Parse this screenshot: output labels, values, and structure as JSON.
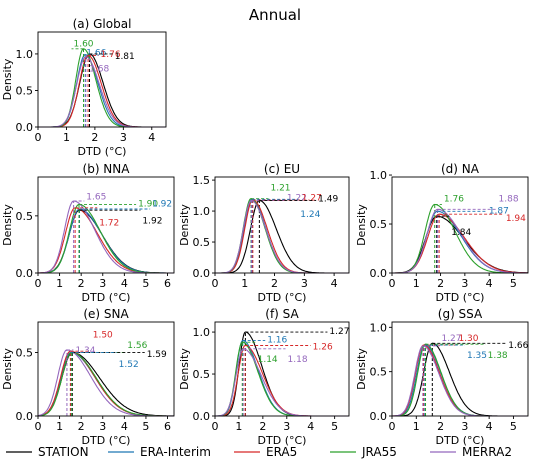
{
  "figure": {
    "title": "Annual",
    "legend": [
      {
        "name": "STATION",
        "color": "#000000"
      },
      {
        "name": "ERA-Interim",
        "color": "#1f77b4"
      },
      {
        "name": "ERA5",
        "color": "#d62728"
      },
      {
        "name": "JRA55",
        "color": "#2ca02c"
      },
      {
        "name": "MERRA2",
        "color": "#9467bd"
      }
    ]
  },
  "chart_data": [
    {
      "type": "line",
      "title": "(a) Global",
      "xlabel": "DTD (°C)",
      "ylabel": "Density",
      "xlim": [
        0,
        4.5
      ],
      "ylim": [
        0,
        1.3
      ],
      "xticks": [
        "0",
        "1",
        "2",
        "3",
        "4"
      ],
      "yticks": [
        "0.0",
        "0.5",
        "1.0"
      ],
      "series": [
        {
          "name": "STATION",
          "color": "#000000",
          "peak_x": 1.81,
          "peak_y": 1.0,
          "width": 0.34,
          "skew": 1.4
        },
        {
          "name": "ERA-Interim",
          "color": "#1f77b4",
          "peak_x": 1.66,
          "peak_y": 0.99,
          "width": 0.3,
          "skew": 1.5
        },
        {
          "name": "ERA5",
          "color": "#d62728",
          "peak_x": 1.76,
          "peak_y": 0.98,
          "width": 0.31,
          "skew": 1.5
        },
        {
          "name": "JRA55",
          "color": "#2ca02c",
          "peak_x": 1.6,
          "peak_y": 1.07,
          "width": 0.27,
          "skew": 1.6
        },
        {
          "name": "MERRA2",
          "color": "#9467bd",
          "peak_x": 1.68,
          "peak_y": 0.96,
          "width": 0.32,
          "skew": 1.5
        }
      ],
      "annotations": [
        {
          "text": "1.60",
          "color": "#2ca02c",
          "x": 1.6,
          "y": 1.14
        },
        {
          "text": "1.66",
          "color": "#1f77b4",
          "x": 2.05,
          "y": 1.02
        },
        {
          "text": "1.76",
          "color": "#d62728",
          "x": 2.55,
          "y": 1.0
        },
        {
          "text": "1.81",
          "color": "#000000",
          "x": 3.05,
          "y": 0.97
        },
        {
          "text": "1.68",
          "color": "#9467bd",
          "x": 2.15,
          "y": 0.8
        }
      ]
    },
    {
      "type": "line",
      "title": "(b) NNA",
      "xlabel": "DTD (°C)",
      "ylabel": "Density",
      "xlim": [
        0,
        6.3
      ],
      "ylim": [
        0,
        0.84
      ],
      "xticks": [
        "0",
        "1",
        "2",
        "3",
        "4",
        "5",
        "6"
      ],
      "yticks": [
        "0.0",
        "0.5"
      ],
      "series": [
        {
          "name": "STATION",
          "color": "#000000",
          "peak_x": 1.92,
          "peak_y": 0.55,
          "width": 0.48,
          "skew": 2.2
        },
        {
          "name": "ERA-Interim",
          "color": "#1f77b4",
          "peak_x": 1.92,
          "peak_y": 0.56,
          "width": 0.47,
          "skew": 2.2
        },
        {
          "name": "ERA5",
          "color": "#d62728",
          "peak_x": 1.72,
          "peak_y": 0.57,
          "width": 0.45,
          "skew": 2.3
        },
        {
          "name": "JRA55",
          "color": "#2ca02c",
          "peak_x": 1.9,
          "peak_y": 0.6,
          "width": 0.45,
          "skew": 2.2
        },
        {
          "name": "MERRA2",
          "color": "#9467bd",
          "peak_x": 1.65,
          "peak_y": 0.63,
          "width": 0.42,
          "skew": 2.3
        }
      ],
      "annotations": [
        {
          "text": "1.65",
          "color": "#9467bd",
          "x": 2.7,
          "y": 0.67
        },
        {
          "text": "1.90",
          "color": "#2ca02c",
          "x": 5.1,
          "y": 0.61
        },
        {
          "text": "1.92",
          "color": "#1f77b4",
          "x": 5.75,
          "y": 0.61
        },
        {
          "text": "1.72",
          "color": "#d62728",
          "x": 3.3,
          "y": 0.44
        },
        {
          "text": "1.92",
          "color": "#000000",
          "x": 5.3,
          "y": 0.46
        }
      ]
    },
    {
      "type": "line",
      "title": "(c) EU",
      "xlabel": "DTD (°C)",
      "ylabel": "Density",
      "xlim": [
        0,
        4.5
      ],
      "ylim": [
        0,
        1.55
      ],
      "xticks": [
        "0",
        "1",
        "2",
        "3",
        "4"
      ],
      "yticks": [
        "0.0",
        "0.5",
        "1.0",
        "1.5"
      ],
      "series": [
        {
          "name": "STATION",
          "color": "#000000",
          "peak_x": 1.49,
          "peak_y": 1.17,
          "width": 0.3,
          "skew": 1.9
        },
        {
          "name": "ERA-Interim",
          "color": "#1f77b4",
          "peak_x": 1.24,
          "peak_y": 1.19,
          "width": 0.26,
          "skew": 1.8
        },
        {
          "name": "ERA5",
          "color": "#d62728",
          "peak_x": 1.27,
          "peak_y": 1.18,
          "width": 0.27,
          "skew": 1.8
        },
        {
          "name": "JRA55",
          "color": "#2ca02c",
          "peak_x": 1.21,
          "peak_y": 1.2,
          "width": 0.26,
          "skew": 1.8
        },
        {
          "name": "MERRA2",
          "color": "#9467bd",
          "peak_x": 1.22,
          "peak_y": 1.17,
          "width": 0.27,
          "skew": 1.8
        }
      ],
      "annotations": [
        {
          "text": "1.21",
          "color": "#2ca02c",
          "x": 2.2,
          "y": 1.38
        },
        {
          "text": "1.22",
          "color": "#9467bd",
          "x": 2.75,
          "y": 1.22
        },
        {
          "text": "1.27",
          "color": "#d62728",
          "x": 3.25,
          "y": 1.22
        },
        {
          "text": "1.49",
          "color": "#000000",
          "x": 3.8,
          "y": 1.2
        },
        {
          "text": "1.24",
          "color": "#1f77b4",
          "x": 3.2,
          "y": 0.95
        }
      ]
    },
    {
      "type": "line",
      "title": "(d) NA",
      "xlabel": "DTD (°C)",
      "ylabel": "Density",
      "xlim": [
        0,
        5.6
      ],
      "ylim": [
        0,
        0.98
      ],
      "xticks": [
        "0",
        "1",
        "2",
        "3",
        "4",
        "5"
      ],
      "yticks": [
        "0.0",
        "0.5",
        "1.0"
      ],
      "series": [
        {
          "name": "STATION",
          "color": "#000000",
          "peak_x": 1.84,
          "peak_y": 0.58,
          "width": 0.46,
          "skew": 2.4
        },
        {
          "name": "ERA-Interim",
          "color": "#1f77b4",
          "peak_x": 1.87,
          "peak_y": 0.63,
          "width": 0.44,
          "skew": 2.2
        },
        {
          "name": "ERA5",
          "color": "#d62728",
          "peak_x": 1.94,
          "peak_y": 0.6,
          "width": 0.47,
          "skew": 2.2
        },
        {
          "name": "JRA55",
          "color": "#2ca02c",
          "peak_x": 1.76,
          "peak_y": 0.7,
          "width": 0.4,
          "skew": 2.1
        },
        {
          "name": "MERRA2",
          "color": "#9467bd",
          "peak_x": 1.88,
          "peak_y": 0.65,
          "width": 0.44,
          "skew": 2.2
        }
      ],
      "annotations": [
        {
          "text": "1.76",
          "color": "#2ca02c",
          "x": 2.55,
          "y": 0.76
        },
        {
          "text": "1.88",
          "color": "#9467bd",
          "x": 4.8,
          "y": 0.76
        },
        {
          "text": "1.87",
          "color": "#1f77b4",
          "x": 4.4,
          "y": 0.64
        },
        {
          "text": "1.94",
          "color": "#d62728",
          "x": 5.1,
          "y": 0.56
        },
        {
          "text": "1.84",
          "color": "#000000",
          "x": 2.85,
          "y": 0.42
        }
      ]
    },
    {
      "type": "line",
      "title": "(e) SNA",
      "xlabel": "DTD (°C)",
      "ylabel": "Density",
      "xlim": [
        0,
        6.3
      ],
      "ylim": [
        0,
        0.74
      ],
      "xticks": [
        "0",
        "1",
        "2",
        "3",
        "4",
        "5",
        "6"
      ],
      "yticks": [
        "0.0",
        "0.5"
      ],
      "series": [
        {
          "name": "STATION",
          "color": "#000000",
          "peak_x": 1.59,
          "peak_y": 0.5,
          "width": 0.48,
          "skew": 2.6
        },
        {
          "name": "ERA-Interim",
          "color": "#1f77b4",
          "peak_x": 1.52,
          "peak_y": 0.5,
          "width": 0.45,
          "skew": 2.5
        },
        {
          "name": "ERA5",
          "color": "#d62728",
          "peak_x": 1.5,
          "peak_y": 0.51,
          "width": 0.45,
          "skew": 2.5
        },
        {
          "name": "JRA55",
          "color": "#2ca02c",
          "peak_x": 1.56,
          "peak_y": 0.5,
          "width": 0.45,
          "skew": 2.5
        },
        {
          "name": "MERRA2",
          "color": "#9467bd",
          "peak_x": 1.34,
          "peak_y": 0.52,
          "width": 0.42,
          "skew": 2.6
        }
      ],
      "annotations": [
        {
          "text": "1.50",
          "color": "#d62728",
          "x": 3.0,
          "y": 0.64
        },
        {
          "text": "1.56",
          "color": "#2ca02c",
          "x": 4.6,
          "y": 0.56
        },
        {
          "text": "1.34",
          "color": "#9467bd",
          "x": 2.2,
          "y": 0.52
        },
        {
          "text": "1.59",
          "color": "#000000",
          "x": 5.5,
          "y": 0.49
        },
        {
          "text": "1.52",
          "color": "#1f77b4",
          "x": 4.2,
          "y": 0.41
        }
      ]
    },
    {
      "type": "line",
      "title": "(f) SA",
      "xlabel": "DTD (°C)",
      "ylabel": "Density",
      "xlim": [
        0,
        5.6
      ],
      "ylim": [
        0,
        1.12
      ],
      "xticks": [
        "0",
        "1",
        "2",
        "3",
        "4",
        "5"
      ],
      "yticks": [
        "0.0",
        "0.5",
        "1.0"
      ],
      "series": [
        {
          "name": "STATION",
          "color": "#000000",
          "peak_x": 1.27,
          "peak_y": 1.0,
          "width": 0.26,
          "skew": 2.6
        },
        {
          "name": "ERA-Interim",
          "color": "#1f77b4",
          "peak_x": 1.16,
          "peak_y": 0.9,
          "width": 0.27,
          "skew": 2.4
        },
        {
          "name": "ERA5",
          "color": "#d62728",
          "peak_x": 1.26,
          "peak_y": 0.84,
          "width": 0.29,
          "skew": 2.5
        },
        {
          "name": "JRA55",
          "color": "#2ca02c",
          "peak_x": 1.14,
          "peak_y": 0.88,
          "width": 0.27,
          "skew": 2.4
        },
        {
          "name": "MERRA2",
          "color": "#9467bd",
          "peak_x": 1.18,
          "peak_y": 0.8,
          "width": 0.3,
          "skew": 2.5
        }
      ],
      "annotations": [
        {
          "text": "1.27",
          "color": "#000000",
          "x": 5.2,
          "y": 1.01
        },
        {
          "text": "1.16",
          "color": "#1f77b4",
          "x": 2.6,
          "y": 0.91
        },
        {
          "text": "1.26",
          "color": "#d62728",
          "x": 4.5,
          "y": 0.83
        },
        {
          "text": "1.14",
          "color": "#2ca02c",
          "x": 2.2,
          "y": 0.68
        },
        {
          "text": "1.18",
          "color": "#9467bd",
          "x": 3.45,
          "y": 0.68
        }
      ]
    },
    {
      "type": "line",
      "title": "(g) SSA",
      "xlabel": "DTD (°C)",
      "ylabel": "Density",
      "xlim": [
        0,
        5.6
      ],
      "ylim": [
        0,
        1.06
      ],
      "xticks": [
        "0",
        "1",
        "2",
        "3",
        "4",
        "5"
      ],
      "yticks": [
        "0.0",
        "0.5",
        "1.0"
      ],
      "series": [
        {
          "name": "STATION",
          "color": "#000000",
          "peak_x": 1.66,
          "peak_y": 0.82,
          "width": 0.35,
          "skew": 2.0
        },
        {
          "name": "ERA-Interim",
          "color": "#1f77b4",
          "peak_x": 1.35,
          "peak_y": 0.8,
          "width": 0.33,
          "skew": 2.0
        },
        {
          "name": "ERA5",
          "color": "#d62728",
          "peak_x": 1.3,
          "peak_y": 0.8,
          "width": 0.33,
          "skew": 2.0
        },
        {
          "name": "JRA55",
          "color": "#2ca02c",
          "peak_x": 1.38,
          "peak_y": 0.81,
          "width": 0.32,
          "skew": 2.0
        },
        {
          "name": "MERRA2",
          "color": "#9467bd",
          "peak_x": 1.27,
          "peak_y": 0.79,
          "width": 0.33,
          "skew": 2.0
        }
      ],
      "annotations": [
        {
          "text": "1.27",
          "color": "#9467bd",
          "x": 2.45,
          "y": 0.88
        },
        {
          "text": "1.30",
          "color": "#d62728",
          "x": 3.15,
          "y": 0.88
        },
        {
          "text": "1.66",
          "color": "#000000",
          "x": 5.2,
          "y": 0.8
        },
        {
          "text": "1.35",
          "color": "#1f77b4",
          "x": 3.5,
          "y": 0.69
        },
        {
          "text": "1.38",
          "color": "#2ca02c",
          "x": 4.35,
          "y": 0.69
        }
      ]
    }
  ]
}
